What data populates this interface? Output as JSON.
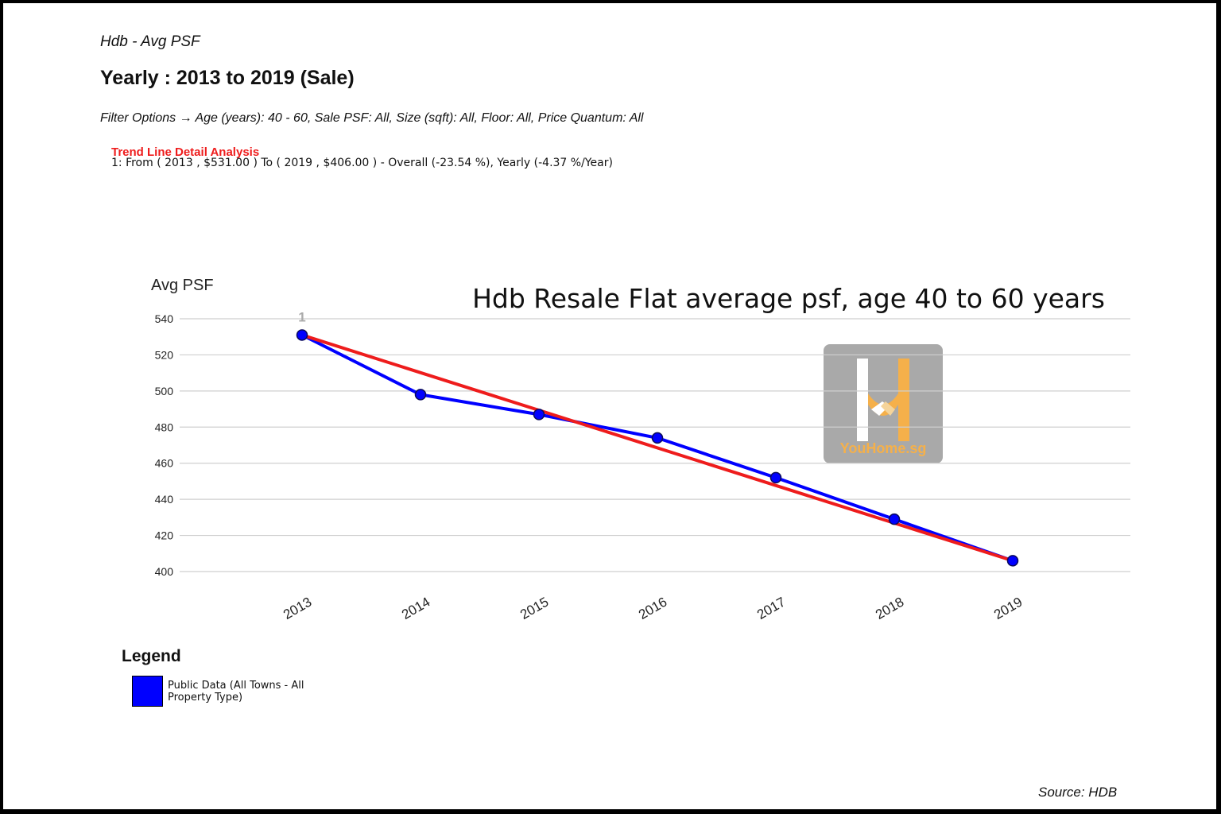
{
  "header": {
    "subtitle": "Hdb - Avg PSF",
    "title": "Yearly : 2013 to 2019 (Sale)",
    "filters": "Filter Options → Age (years): 40 - 60, Sale PSF: All, Size (sqft): All, Floor: All, Price Quantum: All",
    "trend_heading": "Trend Line Detail Analysis",
    "trend_detail": "1: From ( 2013 , $531.00 ) To ( 2019 , $406.00 ) - Overall (-23.54 %), Yearly (-4.37 %/Year)"
  },
  "chart_data": {
    "type": "line",
    "title": "Hdb Resale Flat average psf, age 40 to 60 years",
    "ylabel": "Avg PSF",
    "xlabel": "",
    "categories": [
      "2013",
      "2014",
      "2015",
      "2016",
      "2017",
      "2018",
      "2019"
    ],
    "series": [
      {
        "name": "Public Data (All Towns - All Property Type)",
        "color": "#0000ff",
        "values": [
          531,
          498,
          487,
          474,
          452,
          429,
          406
        ]
      }
    ],
    "trend_line": {
      "label": "1",
      "color": "#ee1c1c",
      "from": [
        "2013",
        531
      ],
      "to": [
        "2019",
        406
      ]
    },
    "ylim": [
      400,
      540
    ],
    "yticks": [
      400,
      420,
      440,
      460,
      480,
      500,
      520,
      540
    ],
    "grid": true,
    "legend_position": "bottom-left"
  },
  "legend": {
    "title": "Legend",
    "items": [
      {
        "label": "Public Data (All Towns - All Property Type)",
        "color": "#0000ff"
      }
    ]
  },
  "watermark": {
    "text": "YouHome.sg",
    "icon": "youhome-logo-icon"
  },
  "source": "Source: HDB"
}
